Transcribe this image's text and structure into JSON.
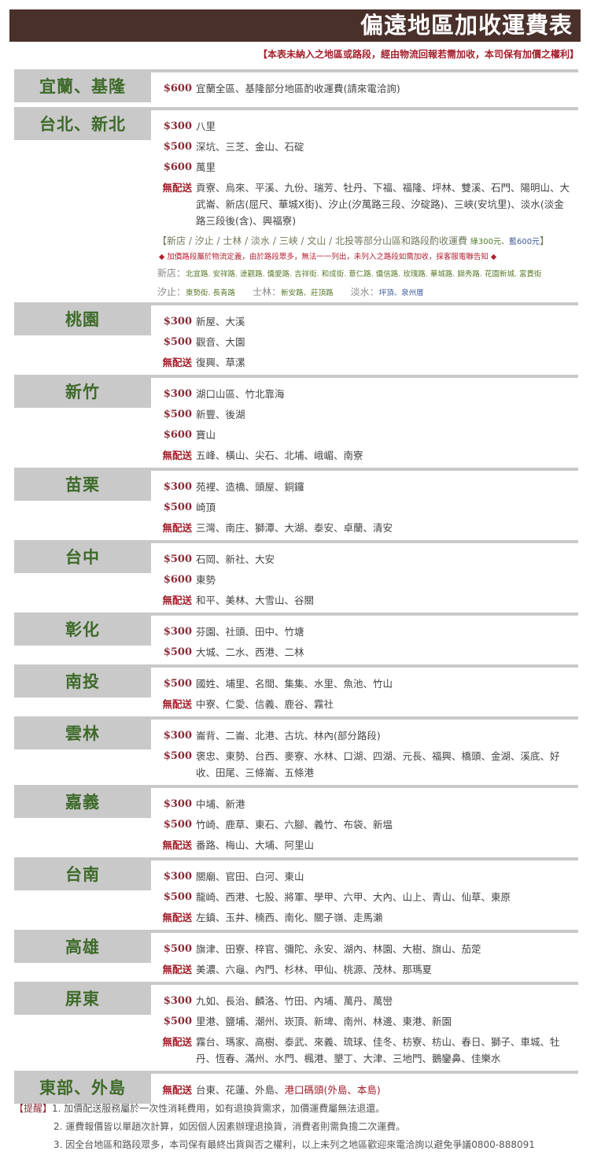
{
  "header": {
    "title": "偏遠地區加收運費表",
    "subtitle": "【本表未納入之地區或路段，經由物流回報若需加收，本司保有加價之權利】"
  },
  "colors": {
    "header_bg": "#4a302b",
    "region_text": "#3e6b2a",
    "price": "#8b2a36",
    "no_delivery": "#a3202c",
    "label_bg": "#c9c9c9"
  },
  "sections": [
    {
      "name": "宜蘭、基隆",
      "rows": [
        {
          "price": "$600",
          "text": "宜蘭全區、基隆部分地區酌收運費(請來電洽詢)"
        }
      ]
    },
    {
      "name": "台北、新北",
      "rows": [
        {
          "price": "$300",
          "text": "八里"
        },
        {
          "price": "$500",
          "text": "深坑、三芝、金山、石碇"
        },
        {
          "price": "$600",
          "text": "萬里"
        },
        {
          "price": "無配送",
          "text": "貢寮、烏來、平溪、九份、瑞芳、牡丹、下福、福隆、坪林、雙溪、石門、陽明山、大武崙、新店(屈尺、華城X街)、汐止(汐萬路三段、汐碇路)、三峽(安坑里)、淡水(淡金路三段後(含)、興福寮)"
        }
      ],
      "note": {
        "text": "【新店 / 汐止 / 士林 / 淡水 / 三峽 / 文山 / 北投等部分山區和路段酌收運費",
        "green": "綠300元",
        "sep": "、",
        "blue": "藍600元",
        "close": "】"
      },
      "note_red": "◆ 加價路段屬於物流定義，由於路段眾多，無法一一列出，未列入之路段如需加收，採客服電聯告知 ◆",
      "roads": [
        {
          "label": "新店：",
          "value": "北宜路. 安祥路. 達觀路. 僑愛路. 吉祥街. 和成街. 薏仁路. 僑信路. 玫瑰路. 華城路. 錦秀路. 花園新城. 富貴街"
        },
        {
          "label": "汐止：",
          "value": "東勢街. 長青路"
        },
        {
          "label": "士林：",
          "value": "新安路、莊頂路"
        },
        {
          "label": "淡水：",
          "value": "坪頂、泉州厝"
        }
      ]
    },
    {
      "name": "桃園",
      "rows": [
        {
          "price": "$300",
          "text": "新屋、大溪"
        },
        {
          "price": "$500",
          "text": "觀音、大園"
        },
        {
          "price": "無配送",
          "text": "復興、草漯"
        }
      ]
    },
    {
      "name": "新竹",
      "rows": [
        {
          "price": "$300",
          "text": "湖口山區、竹北靠海"
        },
        {
          "price": "$500",
          "text": "新豐、後湖"
        },
        {
          "price": "$600",
          "text": "寶山"
        },
        {
          "price": "無配送",
          "text": "五峰、橫山、尖石、北埔、峨嵋、南寮"
        }
      ]
    },
    {
      "name": "苗栗",
      "rows": [
        {
          "price": "$300",
          "text": "苑裡、造橋、頭屋、銅鑼"
        },
        {
          "price": "$500",
          "text": "崎頂"
        },
        {
          "price": "無配送",
          "text": "三灣、南庄、獅潭、大湖、泰安、卓蘭、清安"
        }
      ]
    },
    {
      "name": "台中",
      "rows": [
        {
          "price": "$500",
          "text": "石岡、新社、大安"
        },
        {
          "price": "$600",
          "text": "東勢"
        },
        {
          "price": "無配送",
          "text": "和平、美林、大雪山、谷關"
        }
      ]
    },
    {
      "name": "彰化",
      "rows": [
        {
          "price": "$300",
          "text": "芬園、社頭、田中、竹塘"
        },
        {
          "price": "$500",
          "text": "大城、二水、西港、二林"
        }
      ]
    },
    {
      "name": "南投",
      "rows": [
        {
          "price": "$500",
          "text": "國姓、埔里、名間、集集、水里、魚池、竹山"
        },
        {
          "price": "無配送",
          "text": "中寮、仁愛、信義、鹿谷、霧社"
        }
      ]
    },
    {
      "name": "雲林",
      "rows": [
        {
          "price": "$300",
          "text": "崙背、二崙、北港、古坑、林內(部分路段)"
        },
        {
          "price": "$500",
          "text": "褒忠、東勢、台西、麥寮、水林、口湖、四湖、元長、福興、橋頭、金湖、溪底、好收、田尾、三條崙、五條港"
        }
      ]
    },
    {
      "name": "嘉義",
      "rows": [
        {
          "price": "$300",
          "text": "中埔、新港"
        },
        {
          "price": "$500",
          "text": "竹崎、鹿草、東石、六腳、義竹、布袋、新塭"
        },
        {
          "price": "無配送",
          "text": "番路、梅山、大埔、阿里山"
        }
      ]
    },
    {
      "name": "台南",
      "rows": [
        {
          "price": "$300",
          "text": "關廟、官田、白河、東山"
        },
        {
          "price": "$500",
          "text": "龍崎、西港、七股、將軍、學甲、六甲、大內、山上、青山、仙草、東原"
        },
        {
          "price": "無配送",
          "text": "左鎮、玉井、楠西、南化、關子嶺、走馬瀨"
        }
      ]
    },
    {
      "name": "高雄",
      "rows": [
        {
          "price": "$500",
          "text": "旗津、田寮、梓官、彌陀、永安、湖內、林園、大樹、旗山、茄萣"
        },
        {
          "price": "無配送",
          "text": "美濃、六龜、內門、杉林、甲仙、桃源、茂林、那瑪夏"
        }
      ]
    },
    {
      "name": "屏東",
      "rows": [
        {
          "price": "$300",
          "text": "九如、長治、麟洛、竹田、內埔、萬丹、萬巒"
        },
        {
          "price": "$500",
          "text": "里港、鹽埔、潮州、崁頂、新埤、南州、林邊、東港、新園"
        },
        {
          "price": "無配送",
          "text": "霧台、瑪家、高樹、泰武、來義、琉球、佳冬、枋寮、枋山、春日、獅子、車城、牡丹、恆春、滿州、水門、楓港、墾丁、大津、三地門、鵝鑾鼻、佳樂水"
        }
      ]
    },
    {
      "name": "東部、外島",
      "rows": [
        {
          "price": "無配送",
          "text": "台東、花蓮、外島、",
          "extra": "港口碼頭(外島、本島)"
        }
      ]
    }
  ],
  "footer": {
    "label": "【提醒】",
    "items": [
      "1. 加價配送服務屬於一次性消耗費用，如有退換貨需求，加價運費屬無法退還。",
      "2. 運費報價皆以單趟次計算，如因個人因素辦理退換貨，消費者則需負擔二次運費。",
      "3. 因全台地區和路段眾多，本司保有最終出貨與否之權利，以上未列之地區歡迎來電洽詢以避免爭議0800-888091"
    ]
  }
}
